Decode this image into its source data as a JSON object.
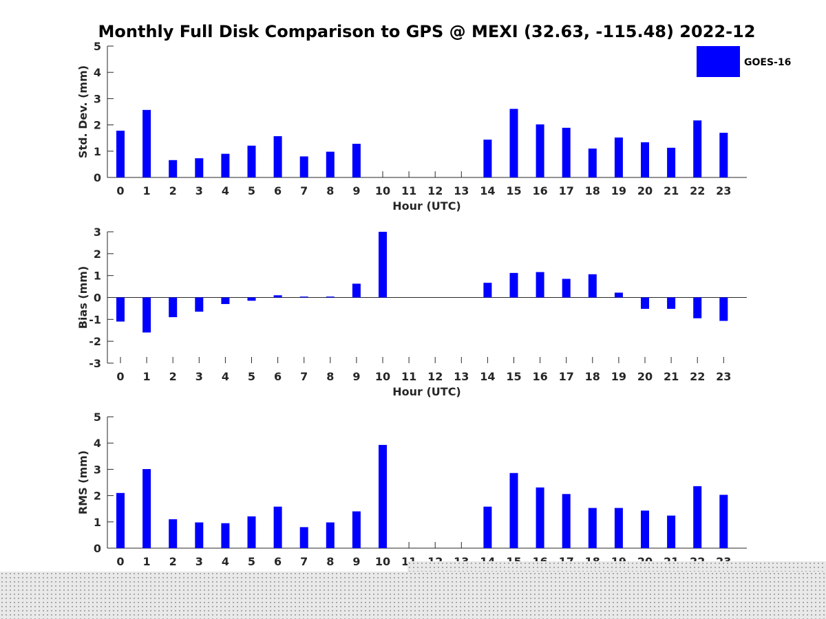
{
  "title": "Monthly Full Disk Comparison to GPS @ MEXI (32.63, -115.48) 2022-12",
  "legend": {
    "label": "GOES-16"
  },
  "colors": {
    "bar": "#0000ff",
    "axis": "#262626"
  },
  "chart_data": [
    {
      "type": "bar",
      "ylabel": "Std. Dev. (mm)",
      "xlabel": "Hour (UTC)",
      "ylim": [
        0,
        5
      ],
      "yticks": [
        0,
        1,
        2,
        3,
        4,
        5
      ],
      "categories": [
        "0",
        "1",
        "2",
        "3",
        "4",
        "5",
        "6",
        "7",
        "8",
        "9",
        "10",
        "11",
        "12",
        "13",
        "14",
        "15",
        "16",
        "17",
        "18",
        "19",
        "20",
        "21",
        "22",
        "23"
      ],
      "series": [
        {
          "name": "GOES-16",
          "values": [
            1.78,
            2.57,
            0.66,
            0.73,
            0.9,
            1.21,
            1.57,
            0.8,
            0.98,
            1.28,
            null,
            null,
            null,
            null,
            1.44,
            2.61,
            2.02,
            1.89,
            1.1,
            1.52,
            1.34,
            1.13,
            2.17,
            1.7
          ]
        }
      ]
    },
    {
      "type": "bar",
      "ylabel": "Bias (mm)",
      "xlabel": "Hour (UTC)",
      "ylim": [
        -3,
        3
      ],
      "yticks": [
        -3,
        -2,
        -1,
        0,
        1,
        2,
        3
      ],
      "categories": [
        "0",
        "1",
        "2",
        "3",
        "4",
        "5",
        "6",
        "7",
        "8",
        "9",
        "10",
        "11",
        "12",
        "13",
        "14",
        "15",
        "16",
        "17",
        "18",
        "19",
        "20",
        "21",
        "22",
        "23"
      ],
      "series": [
        {
          "name": "GOES-16",
          "values": [
            -1.1,
            -1.6,
            -0.9,
            -0.65,
            -0.3,
            -0.15,
            0.1,
            0.04,
            0.04,
            0.63,
            3.0,
            null,
            null,
            null,
            0.67,
            1.12,
            1.16,
            0.85,
            1.06,
            0.22,
            -0.52,
            -0.52,
            -0.95,
            -1.07
          ]
        }
      ]
    },
    {
      "type": "bar",
      "ylabel": "RMS (mm)",
      "xlabel": "",
      "ylim": [
        0,
        5
      ],
      "yticks": [
        0,
        1,
        2,
        3,
        4,
        5
      ],
      "categories": [
        "0",
        "1",
        "2",
        "3",
        "4",
        "5",
        "6",
        "7",
        "8",
        "9",
        "10",
        "11",
        "12",
        "13",
        "14",
        "15",
        "16",
        "17",
        "18",
        "19",
        "20",
        "21",
        "22",
        "23"
      ],
      "series": [
        {
          "name": "GOES-16",
          "values": [
            2.1,
            3.01,
            1.1,
            0.98,
            0.95,
            1.21,
            1.58,
            0.8,
            0.98,
            1.4,
            3.93,
            null,
            null,
            null,
            1.58,
            2.86,
            2.31,
            2.06,
            1.53,
            1.53,
            1.43,
            1.24,
            2.36,
            2.03
          ]
        }
      ]
    }
  ]
}
